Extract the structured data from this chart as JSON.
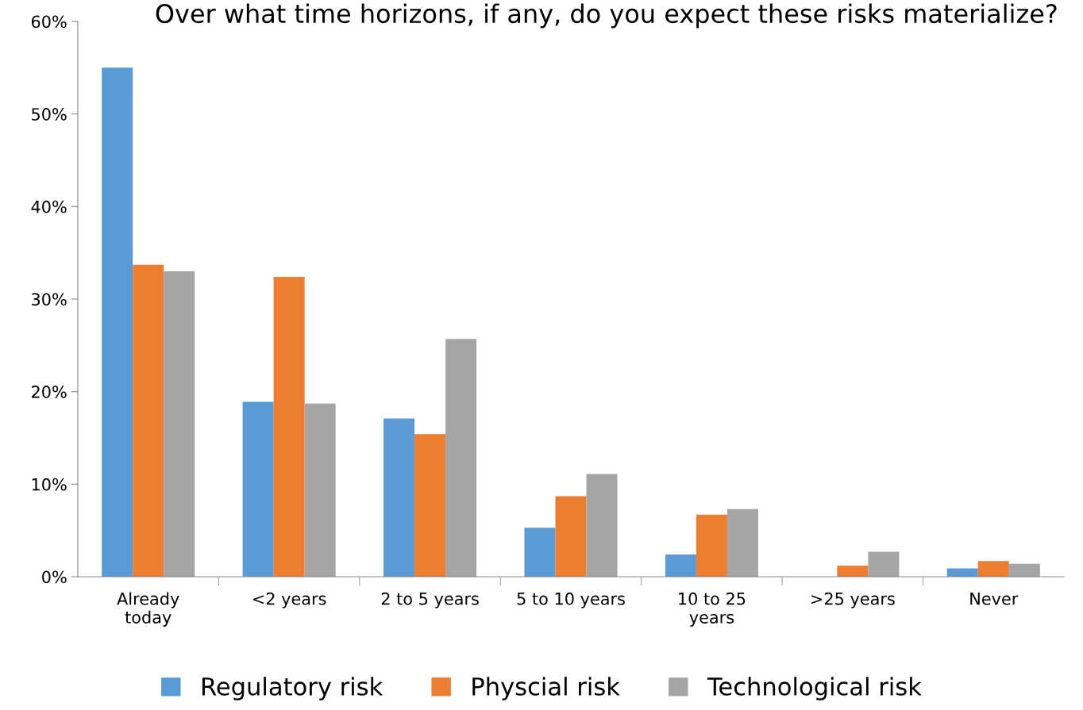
{
  "chart_data": {
    "type": "bar",
    "title": "Over what time horizons, if any, do you expect these risks materialize?",
    "categories": [
      "Already\ntoday",
      "<2 years",
      "2 to 5 years",
      "5 to 10 years",
      "10 to 25\nyears",
      ">25 years",
      "Never"
    ],
    "series": [
      {
        "name": "Regulatory risk",
        "color": "#5b9bd5",
        "values": [
          55,
          18.9,
          17.1,
          5.3,
          2.4,
          0,
          0.9
        ]
      },
      {
        "name": "Physcial risk",
        "color": "#ed7d31",
        "values": [
          33.7,
          32.4,
          15.4,
          8.7,
          6.7,
          1.2,
          1.7
        ]
      },
      {
        "name": "Technological risk",
        "color": "#a5a5a5",
        "values": [
          33.0,
          18.7,
          25.7,
          11.1,
          7.3,
          2.7,
          1.4
        ]
      }
    ],
    "ylim": [
      0,
      60
    ],
    "yticks": [
      {
        "value": 0,
        "label": "0%"
      },
      {
        "value": 10,
        "label": "10%"
      },
      {
        "value": 20,
        "label": "20%"
      },
      {
        "value": 30,
        "label": "30%"
      },
      {
        "value": 40,
        "label": "40%"
      },
      {
        "value": 50,
        "label": "50%"
      },
      {
        "value": 60,
        "label": "60%"
      }
    ],
    "grid": false,
    "legend": "bottom"
  }
}
